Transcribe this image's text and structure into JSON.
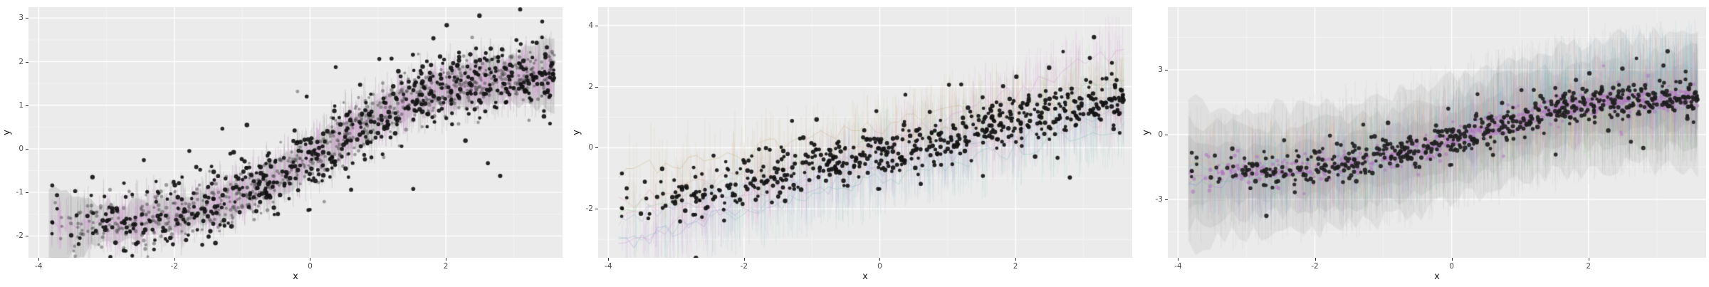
{
  "figure": {
    "background": "#ffffff",
    "panel_background": "#ebebeb",
    "grid_major_color": "#ffffff",
    "grid_minor_color": "rgba(255,255,255,0.55)",
    "tick_mark_color": "#333333",
    "tick_label_color": "#4d4d4d",
    "axis_title_color": "#1a1a1a"
  },
  "chart_data": [
    {
      "id": "left-panel",
      "type": "scatter",
      "title": "",
      "xlabel": "x",
      "ylabel": "y",
      "xlim": [
        -4.15,
        3.72
      ],
      "ylim": [
        -2.5,
        3.25
      ],
      "xticks": [
        -4,
        -2,
        0,
        2
      ],
      "yticks": [
        -2,
        -1,
        0,
        1,
        2,
        3
      ],
      "grid": "on",
      "legend": "none",
      "x_range": [
        -3.85,
        3.6
      ],
      "x_bias": 0.72,
      "trend": {
        "kind": "tanh",
        "amp": 1.8,
        "rate": 0.55,
        "x0": 0.2
      },
      "description": "Observed data (black points) with single-model fit: grey predictive ribbon, grey and plum vertical predictive intervals, grey predicted points and jagged plum median line following a sigmoid trend from about (-3.8,-1.7) to (3.6,1.9)",
      "layers": [
        {
          "kind": "ribbon",
          "color": "#7d7d7d",
          "alpha": 0.22,
          "nodes": 85,
          "halfwidth": 0.4,
          "jitter": 0.16,
          "edge_flare": 0.55,
          "seed": 101
        },
        {
          "kind": "strokes",
          "color": "#909090",
          "alpha": 0.28,
          "n": 520,
          "hw_min": 0.18,
          "hw_max": 0.85,
          "center_jitter": 0.25,
          "seed": 102
        },
        {
          "kind": "strokes",
          "color": "#d9a6d9",
          "alpha": 0.6,
          "n": 560,
          "hw_min": 0.12,
          "hw_max": 0.6,
          "center_jitter": 0.22,
          "seed": 103
        },
        {
          "kind": "line",
          "color": "#d9a6d9",
          "alpha": 0.9,
          "nodes": 150,
          "jitter": 0.1,
          "width": 1.1,
          "seed": 104
        },
        {
          "kind": "points",
          "color": "#4a4a4a",
          "alpha": 0.5,
          "n": 780,
          "sd": 0.27,
          "radius": 2.3,
          "seed": 105
        },
        {
          "kind": "points",
          "color": "#141414",
          "alpha": 0.92,
          "n": 620,
          "sd": 0.4,
          "radius": 2.8,
          "seed": 77,
          "outliers": [
            [
              1.52,
              -0.92
            ],
            [
              2.62,
              -0.33
            ],
            [
              -2.45,
              -0.26
            ],
            [
              -1.78,
              -0.05
            ],
            [
              -0.05,
              1.2
            ],
            [
              1.02,
              2.06
            ],
            [
              1.2,
              2.07
            ],
            [
              3.55,
              1.9
            ],
            [
              3.58,
              1.72
            ],
            [
              -3.8,
              -0.84
            ]
          ]
        }
      ]
    },
    {
      "id": "middle-panel",
      "type": "scatter",
      "title": "",
      "xlabel": "x",
      "ylabel": "y",
      "xlim": [
        -4.15,
        3.72
      ],
      "ylim": [
        -3.6,
        4.6
      ],
      "xticks": [
        -4,
        -2,
        0,
        2
      ],
      "yticks": [
        -2,
        0,
        2,
        4
      ],
      "grid": "on",
      "legend": "none",
      "x_range": [
        -3.85,
        3.6
      ],
      "x_bias": 0.72,
      "trend": {
        "kind": "linear",
        "slope": 0.5,
        "intercept": -0.15
      },
      "description": "Observed data (black points) over an ensemble of eight coloured model draws: pastel jagged prediction lines with dense vertical predictive intervals; magenta draw fans up to y=4 at right, teal/green draws reach y=-3 at lower left",
      "layers": [
        {
          "kind": "series",
          "seed": 201,
          "nodes": 65,
          "line_jitter": 0.28,
          "line_alpha": 0.45,
          "line_width": 1,
          "strokes_per": 240,
          "stroke_alpha": 0.16,
          "hw_min": 0.3,
          "hw_max": 1.3,
          "center_jitter": 0.2,
          "colors": [
            "#c9b27c",
            "#74c7b4",
            "#8fce8f",
            "#ee9fc6",
            "#d98fd9",
            "#93b7dd",
            "#dd9f90",
            "#a49bd8"
          ],
          "m_list": [
            0.8,
            1.0,
            1.15,
            0.9,
            1.75,
            1.05,
            0.95,
            1.2
          ],
          "o_list": [
            0.8,
            -0.9,
            0.3,
            -0.4,
            0.35,
            -0.15,
            0.15,
            -0.65
          ]
        },
        {
          "kind": "points",
          "color": "#141414",
          "alpha": 0.92,
          "n": 620,
          "sd": 0.4,
          "radius": 2.8,
          "seed": 77,
          "outliers": [
            [
              1.52,
              -0.92
            ],
            [
              2.62,
              -0.33
            ],
            [
              -2.45,
              -0.26
            ],
            [
              -1.78,
              -0.05
            ],
            [
              -0.05,
              1.2
            ],
            [
              1.02,
              2.06
            ],
            [
              1.2,
              2.07
            ],
            [
              3.55,
              1.9
            ],
            [
              3.58,
              1.72
            ],
            [
              -3.8,
              -0.84
            ]
          ]
        }
      ]
    },
    {
      "id": "right-panel",
      "type": "scatter",
      "title": "",
      "xlabel": "x",
      "ylabel": "y",
      "xlim": [
        -4.15,
        3.72
      ],
      "ylim": [
        -5.7,
        5.9
      ],
      "xticks": [
        -4,
        -2,
        0,
        2
      ],
      "yticks": [
        -3,
        0,
        3
      ],
      "grid": "on",
      "legend": "none",
      "x_range": [
        -3.85,
        3.6
      ],
      "x_bias": 0.72,
      "trend": {
        "kind": "tanh",
        "amp": 1.8,
        "rate": 0.55,
        "x0": 0.2
      },
      "description": "Observed data (dark points) and purple predicted points over very wide translucent grey predictive bands with seven coloured draw lines (sky blue, green, pink, orange, purple, teal, magenta) and tall vertical interval strokes",
      "layers": [
        {
          "kind": "ribbon",
          "color": "#8a8a8a",
          "alpha": 0.12,
          "nodes": 70,
          "halfwidth": 2.9,
          "jitter": 0.5,
          "edge_flare": 0.5,
          "seed": 301
        },
        {
          "kind": "ribbon",
          "color": "#8a8a8a",
          "alpha": 0.12,
          "nodes": 70,
          "halfwidth": 2.0,
          "jitter": 0.4,
          "edge_flare": 0.4,
          "seed": 302
        },
        {
          "kind": "ribbon",
          "color": "#8a8a8a",
          "alpha": 0.14,
          "nodes": 70,
          "halfwidth": 1.2,
          "jitter": 0.3,
          "edge_flare": 0.3,
          "seed": 303
        },
        {
          "kind": "strokes",
          "color": "#8a8a8a",
          "alpha": 0.1,
          "n": 1000,
          "hw_min": 0.8,
          "hw_max": 3.4,
          "center_jitter": 0.4,
          "seed": 304
        },
        {
          "kind": "series",
          "seed": 305,
          "nodes": 60,
          "line_jitter": 0.35,
          "line_alpha": 0.55,
          "line_width": 1,
          "strokes_per": 300,
          "stroke_alpha": 0.2,
          "hw_min": 0.5,
          "hw_max": 2.0,
          "center_jitter": 0.3,
          "colors": [
            "#85c6e6",
            "#85c885",
            "#ec9fc0",
            "#e6b27c",
            "#9d8cd8",
            "#72c4b0",
            "#cf8fcf"
          ],
          "m_list": [
            1.5,
            0.9,
            1.2,
            0.8,
            1.05,
            1.1,
            0.95
          ],
          "o_list": [
            0.55,
            -0.6,
            0.25,
            0.1,
            -0.3,
            0.4,
            -0.1
          ]
        },
        {
          "kind": "points",
          "color": "#b078c0",
          "alpha": 0.6,
          "n": 720,
          "sd": 0.26,
          "radius": 2.4,
          "seed": 306
        },
        {
          "kind": "points",
          "color": "#1e1e1e",
          "alpha": 0.9,
          "n": 620,
          "sd": 0.4,
          "radius": 2.8,
          "seed": 77,
          "outliers": [
            [
              1.52,
              -0.92
            ],
            [
              2.62,
              -0.33
            ],
            [
              -2.45,
              -0.26
            ],
            [
              -1.78,
              -0.05
            ],
            [
              -0.05,
              1.2
            ],
            [
              1.02,
              2.06
            ],
            [
              1.2,
              2.07
            ],
            [
              3.55,
              1.9
            ],
            [
              3.58,
              1.72
            ],
            [
              -3.8,
              -0.84
            ]
          ]
        }
      ]
    }
  ]
}
